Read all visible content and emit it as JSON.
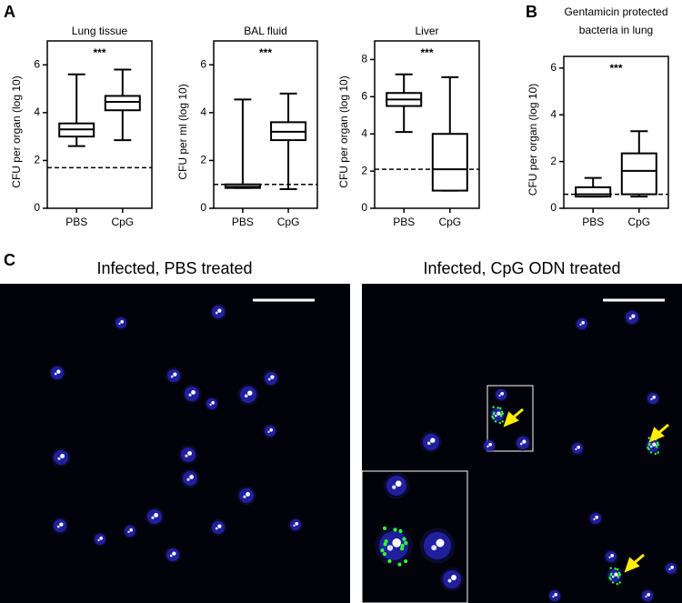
{
  "panels": {
    "A": "A",
    "B": "B",
    "C": "C"
  },
  "chart_data": [
    {
      "type": "box",
      "title": "Lung tissue",
      "ylabel": "CFU per organ (log 10)",
      "annotation": "***",
      "categories": [
        "PBS",
        "CpG"
      ],
      "min": [
        2.6,
        2.85
      ],
      "q1": [
        3.0,
        4.1
      ],
      "median": [
        3.3,
        4.45
      ],
      "q3": [
        3.55,
        4.7
      ],
      "max": [
        5.6,
        5.8
      ],
      "threshold": 1.7,
      "ylim": [
        0,
        7
      ],
      "yticks": [
        0,
        2,
        4,
        6
      ]
    },
    {
      "type": "box",
      "title": "BAL fluid",
      "ylabel": "CFU per ml (log 10)",
      "annotation": "***",
      "categories": [
        "PBS",
        "CpG"
      ],
      "min": [
        0.85,
        0.8
      ],
      "q1": [
        0.85,
        2.85
      ],
      "median": [
        0.9,
        3.2
      ],
      "q3": [
        1.0,
        3.6
      ],
      "max": [
        4.55,
        4.8
      ],
      "threshold": 1.0,
      "ylim": [
        0,
        7
      ],
      "yticks": [
        0,
        2,
        4,
        6
      ]
    },
    {
      "type": "box",
      "title": "Liver",
      "ylabel": "CFU per organ (log 10)",
      "annotation": "***",
      "categories": [
        "PBS",
        "CpG"
      ],
      "min": [
        4.1,
        0.95
      ],
      "q1": [
        5.5,
        0.95
      ],
      "median": [
        5.85,
        2.1
      ],
      "q3": [
        6.2,
        4.0
      ],
      "max": [
        7.2,
        7.05
      ],
      "threshold": 2.1,
      "ylim": [
        0,
        9
      ],
      "yticks": [
        0,
        2,
        4,
        6,
        8
      ]
    },
    {
      "type": "box",
      "title": [
        "Gentamicin protected",
        "bacteria in lung"
      ],
      "ylabel": "CFU per organ (log 10)",
      "annotation": "***",
      "categories": [
        "PBS",
        "CpG"
      ],
      "min": [
        0.5,
        0.5
      ],
      "q1": [
        0.5,
        0.6
      ],
      "median": [
        0.6,
        1.6
      ],
      "q3": [
        0.9,
        2.35
      ],
      "max": [
        1.3,
        3.3
      ],
      "threshold": 0.6,
      "ylim": [
        0,
        6.5
      ],
      "yticks": [
        0,
        2,
        4,
        6
      ]
    }
  ],
  "images": [
    {
      "title": "Infected, PBS treated"
    },
    {
      "title": "Infected, CpG ODN treated"
    }
  ]
}
